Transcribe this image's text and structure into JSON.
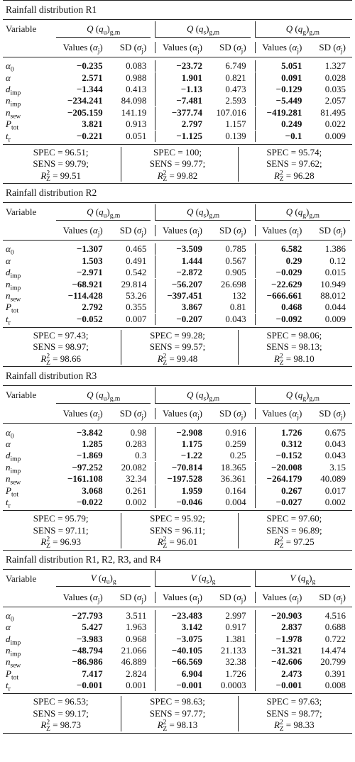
{
  "sections": [
    {
      "title": "Rainfall distribution R1",
      "variable_header": "Variable",
      "groups": [
        "Q(qu)g,m",
        "Q(qs)g,m",
        "Q(qg)g,m"
      ],
      "subheaders": [
        "Values (αj)",
        "SD (σj)"
      ],
      "rows": [
        {
          "var": "α0",
          "vals": [
            "−0.235",
            "0.083",
            "−23.72",
            "6.749",
            "5.051",
            "1.327"
          ]
        },
        {
          "var": "α",
          "vals": [
            "2.571",
            "0.988",
            "1.901",
            "0.821",
            "0.091",
            "0.028"
          ]
        },
        {
          "var": "dimp",
          "vals": [
            "−1.344",
            "0.413",
            "−1.13",
            "0.473",
            "−0.129",
            "0.035"
          ]
        },
        {
          "var": "nimp",
          "vals": [
            "−234.241",
            "84.098",
            "−7.481",
            "2.593",
            "−5.449",
            "2.057"
          ]
        },
        {
          "var": "nsew",
          "vals": [
            "−205.159",
            "141.19",
            "−377.74",
            "107.016",
            "−419.281",
            "81.495"
          ]
        },
        {
          "var": "Ptot",
          "vals": [
            "3.821",
            "0.913",
            "2.797",
            "1.157",
            "0.249",
            "0.022"
          ]
        },
        {
          "var": "tr",
          "vals": [
            "−0.221",
            "0.051",
            "−1.125",
            "0.139",
            "−0.1",
            "0.009"
          ]
        }
      ],
      "stats": [
        [
          "SPEC = 96.51;",
          "SENS = 99.79;",
          "R2Z = 99.51"
        ],
        [
          "SPEC = 100;",
          "SENS = 99.77;",
          "R2Z = 99.82"
        ],
        [
          "SPEC = 95.74;",
          "SENS = 97.62;",
          "R2Z = 96.28"
        ]
      ]
    },
    {
      "title": "Rainfall distribution R2",
      "variable_header": "Variable",
      "groups": [
        "Q(qu)g,m",
        "Q(qs)g,m",
        "Q(qg)g,m"
      ],
      "subheaders": [
        "Values (αj)",
        "SD (σj)"
      ],
      "rows": [
        {
          "var": "α0",
          "vals": [
            "−1.307",
            "0.465",
            "−3.509",
            "0.785",
            "6.582",
            "1.386"
          ]
        },
        {
          "var": "α",
          "vals": [
            "1.503",
            "0.491",
            "1.444",
            "0.567",
            "0.29",
            "0.12"
          ]
        },
        {
          "var": "dimp",
          "vals": [
            "−2.971",
            "0.542",
            "−2.872",
            "0.905",
            "−0.029",
            "0.015"
          ]
        },
        {
          "var": "nimp",
          "vals": [
            "−68.921",
            "29.814",
            "−56.207",
            "26.698",
            "−22.629",
            "10.949"
          ]
        },
        {
          "var": "nsew",
          "vals": [
            "−114.428",
            "53.26",
            "−397.451",
            "132",
            "−666.661",
            "88.012"
          ]
        },
        {
          "var": "Ptot",
          "vals": [
            "2.792",
            "0.355",
            "3.867",
            "0.81",
            "0.468",
            "0.044"
          ]
        },
        {
          "var": "tr",
          "vals": [
            "−0.052",
            "0.007",
            "−0.207",
            "0.043",
            "−0.092",
            "0.009"
          ]
        }
      ],
      "stats": [
        [
          "SPEC = 97.43;",
          "SENS = 98.97;",
          "R2Z = 98.66"
        ],
        [
          "SPEC = 99.28;",
          "SENS = 99.57;",
          "R2Z = 99.48"
        ],
        [
          "SPEC = 98.06;",
          "SENS = 98.13;",
          "R2Z = 98.10"
        ]
      ]
    },
    {
      "title": "Rainfall distribution R3",
      "variable_header": "Variable",
      "groups": [
        "Q(qu)g,m",
        "Q(qs)g,m",
        "Q(qg)g,m"
      ],
      "subheaders": [
        "Values (αj)",
        "SD (σj)"
      ],
      "rows": [
        {
          "var": "α0",
          "vals": [
            "−3.842",
            "0.98",
            "−2.908",
            "0.916",
            "1.726",
            "0.675"
          ]
        },
        {
          "var": "α",
          "vals": [
            "1.285",
            "0.283",
            "1.175",
            "0.259",
            "0.312",
            "0.043"
          ]
        },
        {
          "var": "dimp",
          "vals": [
            "−1.869",
            "0.3",
            "−1.22",
            "0.25",
            "−0.152",
            "0.043"
          ]
        },
        {
          "var": "nimp",
          "vals": [
            "−97.252",
            "20.082",
            "−70.814",
            "18.365",
            "−20.008",
            "3.15"
          ]
        },
        {
          "var": "nsew",
          "vals": [
            "−161.108",
            "32.34",
            "−197.528",
            "36.361",
            "−264.179",
            "40.089"
          ]
        },
        {
          "var": "Ptot",
          "vals": [
            "3.068",
            "0.261",
            "1.959",
            "0.164",
            "0.267",
            "0.017"
          ]
        },
        {
          "var": "tr",
          "vals": [
            "−0.022",
            "0.002",
            "−0.046",
            "0.004",
            "−0.027",
            "0.002"
          ]
        }
      ],
      "stats": [
        [
          "SPEC = 95.79;",
          "SENS = 97.11;",
          "R2Z = 96.93"
        ],
        [
          "SPEC = 95.92;",
          "SENS = 96.11;",
          "R2Z = 96.01"
        ],
        [
          "SPEC = 97.60;",
          "SENS = 96.89;",
          "R2Z = 97.25"
        ]
      ]
    },
    {
      "title": "Rainfall distribution R1, R2, R3, and R4",
      "variable_header": "Variable",
      "groups": [
        "V(qu)g",
        "V(qs)g",
        "V(qg)g"
      ],
      "subheaders": [
        "Values (αj)",
        "SD (σj)"
      ],
      "rows": [
        {
          "var": "α0",
          "vals": [
            "−27.793",
            "3.511",
            "−23.483",
            "2.997",
            "−20.903",
            "4.516"
          ]
        },
        {
          "var": "α",
          "vals": [
            "5.427",
            "1.963",
            "3.142",
            "0.917",
            "2.837",
            "0.688"
          ]
        },
        {
          "var": "dimp",
          "vals": [
            "−3.983",
            "0.968",
            "−3.075",
            "1.381",
            "−1.978",
            "0.722"
          ]
        },
        {
          "var": "nimp",
          "vals": [
            "−48.794",
            "21.066",
            "−40.105",
            "21.133",
            "−31.321",
            "14.474"
          ]
        },
        {
          "var": "nsew",
          "vals": [
            "−86.986",
            "46.889",
            "−66.569",
            "32.38",
            "−42.606",
            "20.799"
          ]
        },
        {
          "var": "Ptot",
          "vals": [
            "7.417",
            "2.824",
            "6.904",
            "1.726",
            "2.473",
            "0.391"
          ]
        },
        {
          "var": "tr",
          "vals": [
            "−0.001",
            "0.001",
            "−0.001",
            "0.0003",
            "−0.001",
            "0.008"
          ]
        }
      ],
      "stats": [
        [
          "SPEC = 96.53;",
          "SENS = 99.17;",
          "R2Z = 98.73"
        ],
        [
          "SPEC = 98.63;",
          "SENS = 97.77;",
          "R2Z = 98.13"
        ],
        [
          "SPEC = 97.63;",
          "SENS = 98.77;",
          "R2Z = 98.33"
        ]
      ]
    }
  ]
}
